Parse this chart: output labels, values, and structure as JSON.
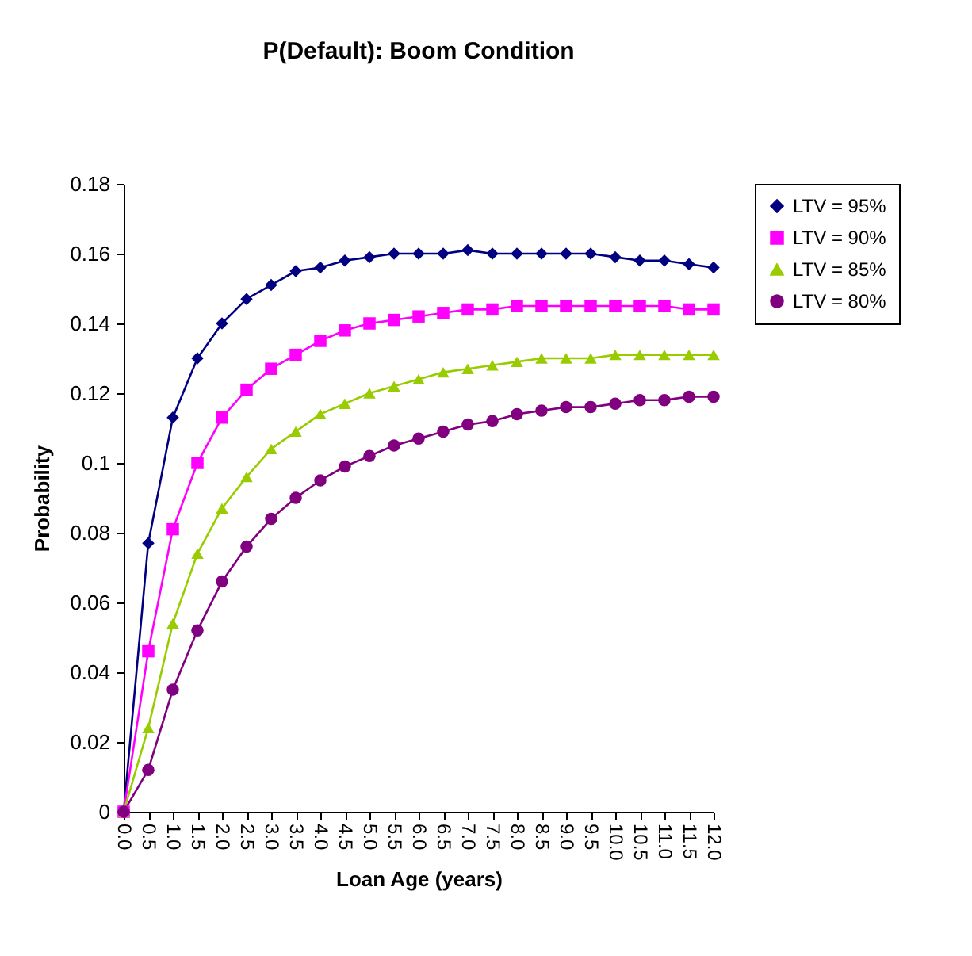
{
  "chart_data": {
    "type": "line",
    "title": "P(Default): Boom Condition",
    "xlabel": "Loan Age (years)",
    "ylabel": "Probability",
    "categories": [
      "0.0",
      "0.5",
      "1.0",
      "1.5",
      "2.0",
      "2.5",
      "3.0",
      "3.5",
      "4.0",
      "4.5",
      "5.0",
      "5.5",
      "6.0",
      "6.5",
      "7.0",
      "7.5",
      "8.0",
      "8.5",
      "9.0",
      "9.5",
      "10.0",
      "10.5",
      "11.0",
      "11.5",
      "12.0"
    ],
    "series": [
      {
        "name": "LTV = 95%",
        "color": "#000080",
        "marker": "diamond",
        "values": [
          0,
          0.077,
          0.113,
          0.13,
          0.14,
          0.147,
          0.151,
          0.155,
          0.156,
          0.158,
          0.159,
          0.16,
          0.16,
          0.16,
          0.161,
          0.16,
          0.16,
          0.16,
          0.16,
          0.16,
          0.159,
          0.158,
          0.158,
          0.157,
          0.156
        ]
      },
      {
        "name": "LTV = 90%",
        "color": "#ff00ff",
        "marker": "square",
        "values": [
          0,
          0.046,
          0.081,
          0.1,
          0.113,
          0.121,
          0.127,
          0.131,
          0.135,
          0.138,
          0.14,
          0.141,
          0.142,
          0.143,
          0.144,
          0.144,
          0.145,
          0.145,
          0.145,
          0.145,
          0.145,
          0.145,
          0.145,
          0.144,
          0.144
        ]
      },
      {
        "name": "LTV = 85%",
        "color": "#99cc00",
        "marker": "triangle",
        "values": [
          0,
          0.024,
          0.054,
          0.074,
          0.087,
          0.096,
          0.104,
          0.109,
          0.114,
          0.117,
          0.12,
          0.122,
          0.124,
          0.126,
          0.127,
          0.128,
          0.129,
          0.13,
          0.13,
          0.13,
          0.131,
          0.131,
          0.131,
          0.131,
          0.131
        ]
      },
      {
        "name": "LTV = 80%",
        "color": "#800080",
        "marker": "circle",
        "values": [
          0,
          0.012,
          0.035,
          0.052,
          0.066,
          0.076,
          0.084,
          0.09,
          0.095,
          0.099,
          0.102,
          0.105,
          0.107,
          0.109,
          0.111,
          0.112,
          0.114,
          0.115,
          0.116,
          0.116,
          0.117,
          0.118,
          0.118,
          0.119,
          0.119
        ]
      }
    ],
    "ylim": [
      0,
      0.18
    ],
    "yticks": [
      0,
      0.02,
      0.04,
      0.06,
      0.08,
      0.1,
      0.12,
      0.14,
      0.16,
      0.18
    ],
    "grid": false,
    "legend": "right"
  }
}
